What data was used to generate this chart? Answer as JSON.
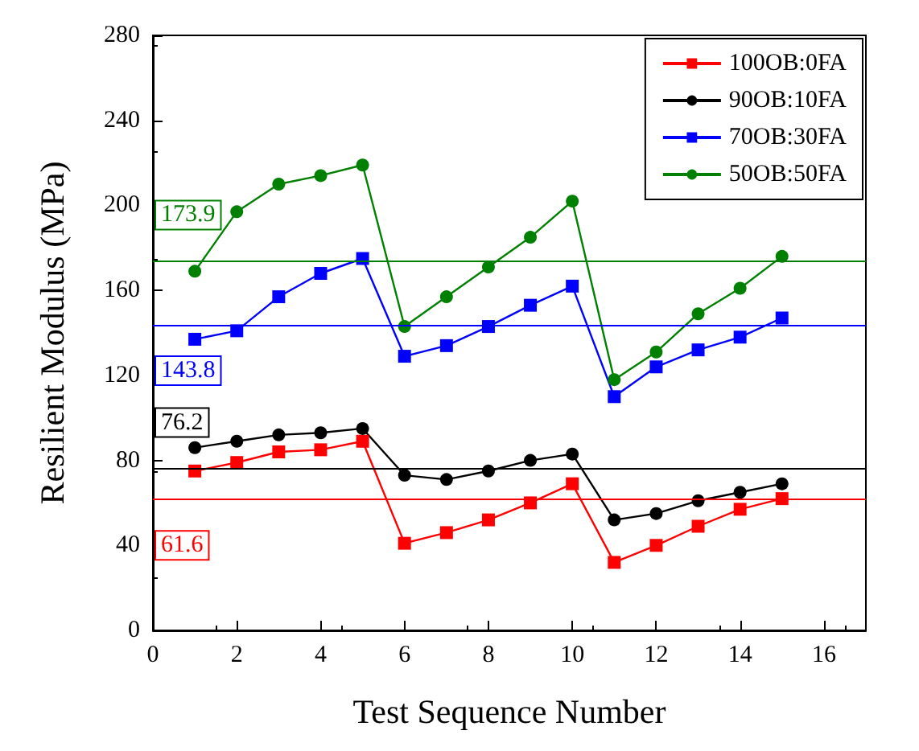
{
  "chart_data": {
    "type": "line",
    "xlabel": "Test Sequence Number",
    "ylabel": "Resilient Modulus (MPa)",
    "x": [
      1,
      2,
      3,
      4,
      5,
      6,
      7,
      8,
      9,
      10,
      11,
      12,
      13,
      14,
      15
    ],
    "xlim": [
      0,
      17
    ],
    "xticks": [
      0,
      2,
      4,
      6,
      8,
      10,
      12,
      14,
      16
    ],
    "ylim": [
      0,
      280
    ],
    "yticks": [
      0,
      40,
      80,
      120,
      160,
      200,
      240,
      280
    ],
    "grid": false,
    "legend": "top right",
    "line_style": "solid",
    "series": [
      {
        "name": "100OB:0FA",
        "color": "#ff0000",
        "marker": "square",
        "values": [
          75,
          79,
          84,
          85,
          89,
          41,
          46,
          52,
          60,
          69,
          32,
          40,
          49,
          57,
          62
        ]
      },
      {
        "name": "90OB:10FA",
        "color": "#000000",
        "marker": "circle",
        "values": [
          86,
          89,
          92,
          93,
          95,
          73,
          71,
          75,
          80,
          83,
          52,
          55,
          61,
          65,
          69
        ]
      },
      {
        "name": "70OB:30FA",
        "color": "#0000ff",
        "marker": "square",
        "values": [
          137,
          141,
          157,
          168,
          175,
          129,
          134,
          143,
          153,
          162,
          110,
          124,
          132,
          138,
          147
        ]
      },
      {
        "name": "50OB:50FA",
        "color": "#008000",
        "marker": "circle",
        "values": [
          169,
          197,
          210,
          214,
          219,
          143,
          157,
          171,
          185,
          202,
          118,
          131,
          149,
          161,
          176
        ]
      }
    ],
    "ref_lines": [
      {
        "axis": "y",
        "value": 173.9,
        "label": "173.9",
        "color": "#008000"
      },
      {
        "axis": "y",
        "value": 143.8,
        "label": "143.8",
        "color": "#0000ff"
      },
      {
        "axis": "y",
        "value": 76.2,
        "label": "76.2",
        "color": "#000000"
      },
      {
        "axis": "y",
        "value": 61.6,
        "label": "61.6",
        "color": "#ff0000"
      }
    ]
  }
}
